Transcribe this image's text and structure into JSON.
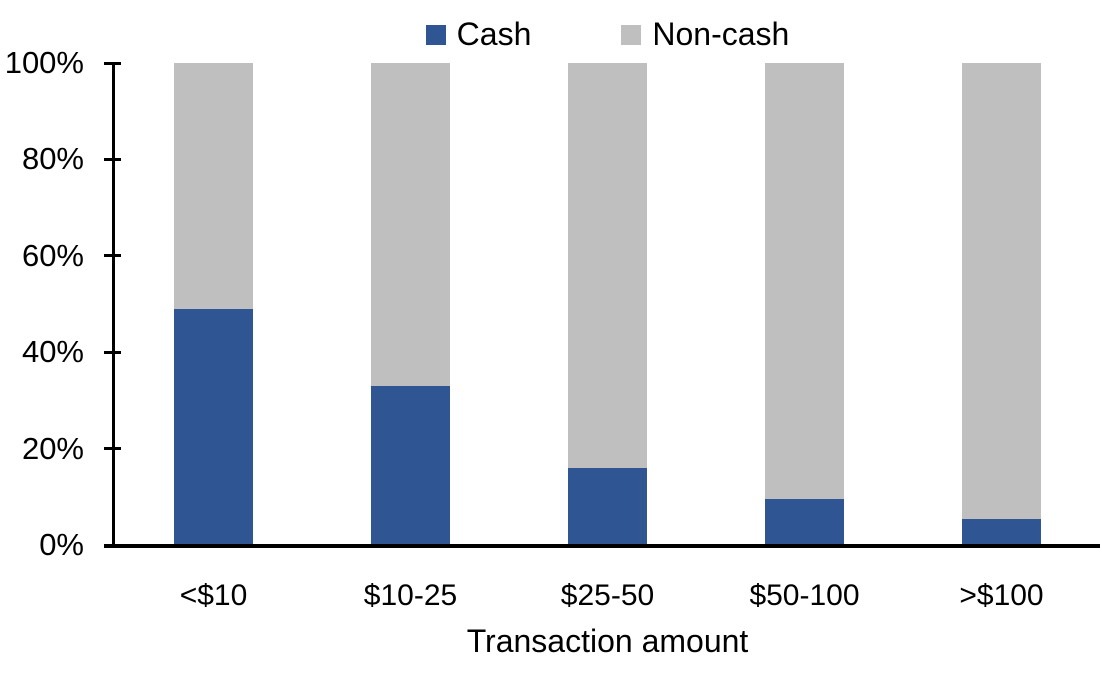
{
  "chart_data": {
    "type": "bar",
    "variant": "stacked-100",
    "orientation": "vertical",
    "title": "",
    "xlabel": "Transaction amount",
    "ylabel": "",
    "categories": [
      "<$10",
      "$10-25",
      "$25-50",
      "$50-100",
      ">$100"
    ],
    "series": [
      {
        "name": "Cash",
        "color": "#2F5693",
        "values": [
          49,
          33,
          16,
          9.5,
          5.5
        ]
      },
      {
        "name": "Non-cash",
        "color": "#BFBFBF",
        "values": [
          51,
          67,
          84,
          90.5,
          94.5
        ]
      }
    ],
    "ylim": [
      0,
      100
    ],
    "yticks": [
      "0%",
      "20%",
      "40%",
      "60%",
      "80%",
      "100%"
    ],
    "ytick_values": [
      0,
      20,
      40,
      60,
      80,
      100
    ],
    "grid": false,
    "legend_position": "top-center",
    "axis_color": "#000000",
    "background_color": "#FFFFFF"
  }
}
